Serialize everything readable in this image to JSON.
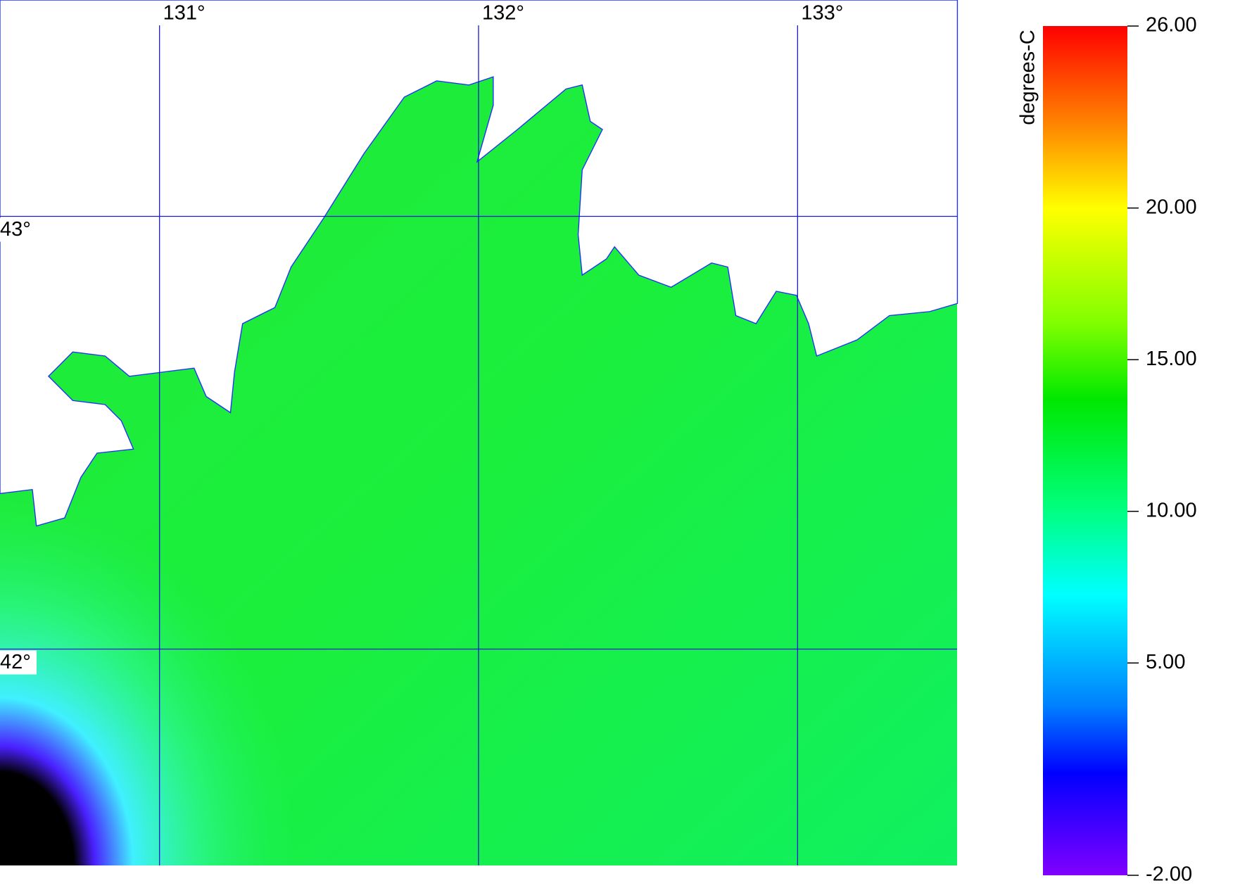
{
  "map": {
    "lon_ticks": [
      {
        "value": 131,
        "label": "131°"
      },
      {
        "value": 132,
        "label": "132°"
      },
      {
        "value": 133,
        "label": "133°"
      }
    ],
    "lat_ticks": [
      {
        "value": 43,
        "label": "43°"
      },
      {
        "value": 42,
        "label": "42°"
      }
    ],
    "xlim": [
      130.5,
      133.5
    ],
    "ylim": [
      41.5,
      43.5
    ]
  },
  "colorbar": {
    "label": "degrees-C",
    "lim": [
      -2,
      26
    ],
    "ticks": [
      {
        "value": 26,
        "label": "26.00"
      },
      {
        "value": 20,
        "label": "20.00"
      },
      {
        "value": 15,
        "label": "15.00"
      },
      {
        "value": 10,
        "label": "10.00"
      },
      {
        "value": 5,
        "label": "5.00"
      },
      {
        "value": -2,
        "label": "-2.00"
      }
    ]
  }
}
